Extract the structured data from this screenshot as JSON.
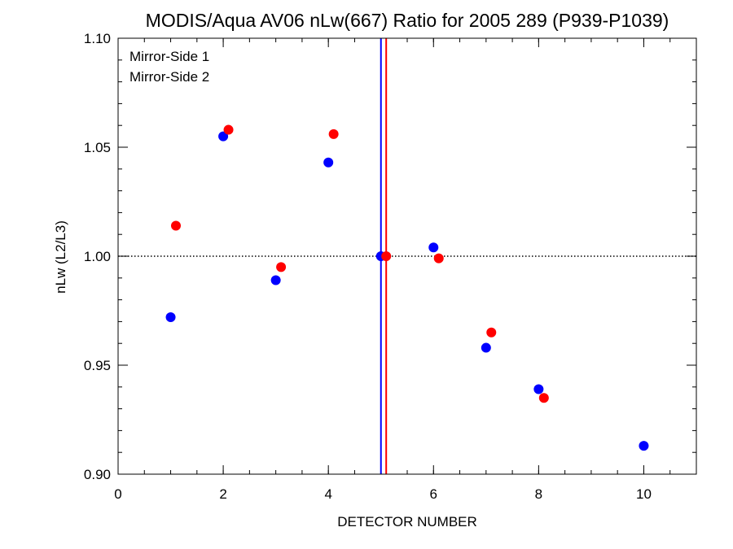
{
  "chart_data": {
    "type": "scatter",
    "title": "MODIS/Aqua AV06 nLw(667) Ratio for 2005 289 (P939-P1039)",
    "xlabel": "DETECTOR NUMBER",
    "ylabel": "nLw (L2/L3)",
    "xlim": [
      0,
      11
    ],
    "ylim": [
      0.9,
      1.1
    ],
    "x_ticks": [
      0,
      2,
      4,
      6,
      8,
      10
    ],
    "y_ticks": [
      "0.90",
      "0.95",
      "1.00",
      "1.05",
      "1.10"
    ],
    "x_minor_step": 0.5,
    "y_minor_step": 0.01,
    "reference_line": {
      "y": 1.0,
      "style": "dotted"
    },
    "legend_position": "top-left",
    "series": [
      {
        "name": "Mirror-Side 1",
        "color": "#0000ff",
        "vline_x": 5.0,
        "points": [
          {
            "x": 1,
            "y": 0.972
          },
          {
            "x": 2,
            "y": 1.055
          },
          {
            "x": 3,
            "y": 0.989
          },
          {
            "x": 4,
            "y": 1.043
          },
          {
            "x": 5,
            "y": 1.0
          },
          {
            "x": 6,
            "y": 1.004
          },
          {
            "x": 7,
            "y": 0.958
          },
          {
            "x": 8,
            "y": 0.939
          },
          {
            "x": 10,
            "y": 0.913
          }
        ]
      },
      {
        "name": "Mirror-Side 2",
        "color": "#ff0000",
        "vline_x": 5.1,
        "points": [
          {
            "x": 1.1,
            "y": 1.014
          },
          {
            "x": 2.1,
            "y": 1.058
          },
          {
            "x": 3.1,
            "y": 0.995
          },
          {
            "x": 4.1,
            "y": 1.056
          },
          {
            "x": 5.1,
            "y": 1.0
          },
          {
            "x": 6.1,
            "y": 0.999
          },
          {
            "x": 7.1,
            "y": 0.965
          },
          {
            "x": 8.1,
            "y": 0.935
          }
        ]
      }
    ]
  }
}
